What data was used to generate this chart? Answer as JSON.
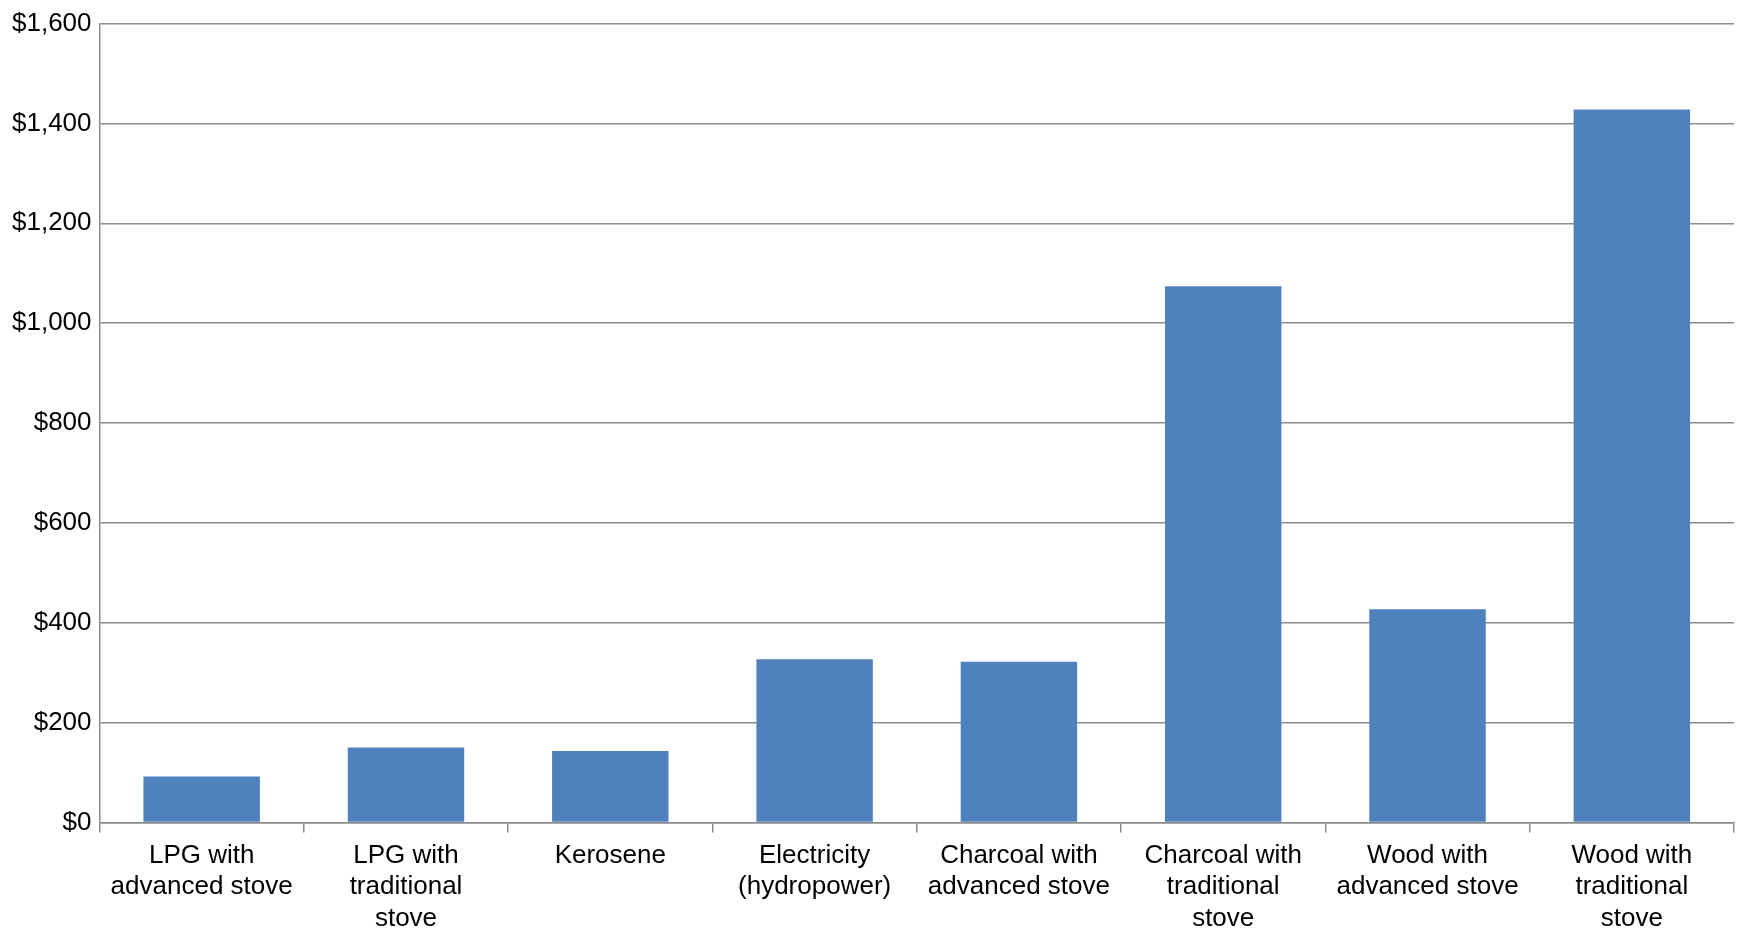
{
  "chart_data": {
    "type": "bar",
    "categories": [
      "LPG with advanced stove",
      "LPG with traditional stove",
      "Kerosene",
      "Electricity (hydropower)",
      "Charcoal with advanced stove",
      "Charcoal with traditional stove",
      "Wood with advanced stove",
      "Wood with traditional stove"
    ],
    "values": [
      92,
      150,
      143,
      327,
      322,
      1074,
      427,
      1428
    ],
    "color": "#4f81bd",
    "ylim": [
      0,
      1600
    ],
    "yticks": [
      {
        "value": 0,
        "label": "$0"
      },
      {
        "value": 200,
        "label": "$200"
      },
      {
        "value": 400,
        "label": "$400"
      },
      {
        "value": 600,
        "label": "$600"
      },
      {
        "value": 800,
        "label": "$800"
      },
      {
        "value": 1000,
        "label": "$1,000"
      },
      {
        "value": 1200,
        "label": "$1,200"
      },
      {
        "value": 1400,
        "label": "$1,400"
      },
      {
        "value": 1600,
        "label": "$1,600"
      }
    ],
    "grid": "y",
    "legend": false
  }
}
